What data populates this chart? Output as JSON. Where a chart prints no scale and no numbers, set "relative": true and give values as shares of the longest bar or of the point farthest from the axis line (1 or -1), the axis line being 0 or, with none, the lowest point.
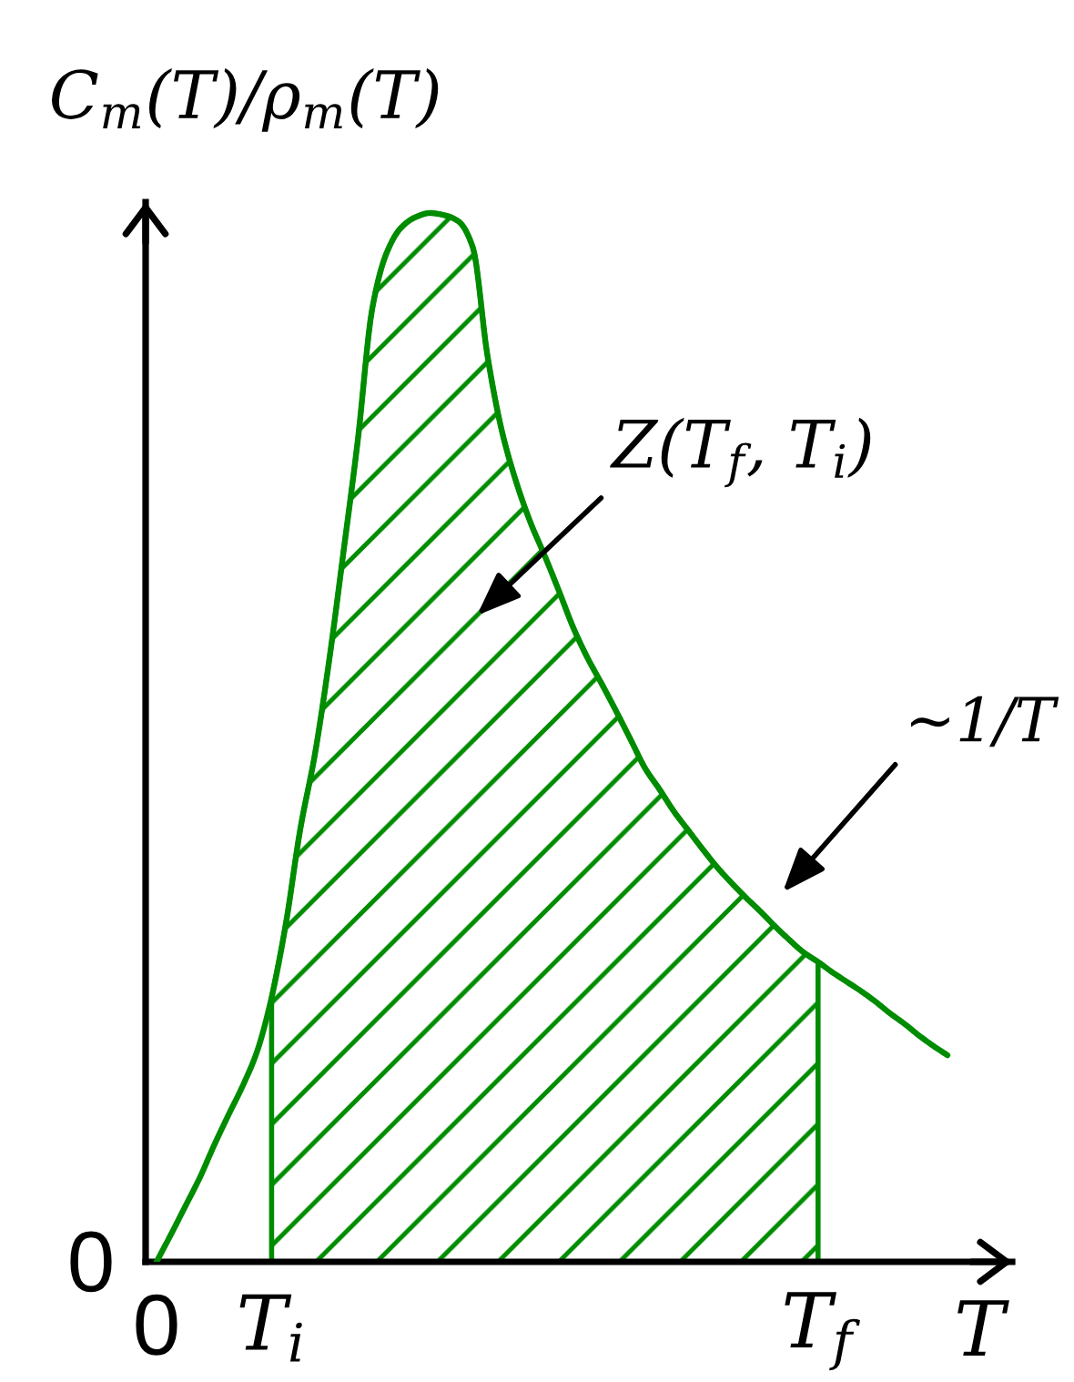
{
  "chart_data": {
    "type": "line",
    "relative": true,
    "xlabel": "T",
    "ylabel": "C$_{m}$(T)/ρ$_{m}$(T)",
    "categories": [
      "0",
      null,
      null,
      null,
      null,
      null,
      null,
      null,
      "T$_{i}$",
      null,
      null,
      null,
      null,
      null,
      null,
      null,
      null,
      null,
      null,
      null,
      null,
      null,
      null,
      null,
      null,
      null,
      null,
      null,
      null,
      null,
      null,
      null,
      null,
      null,
      null,
      null,
      null,
      null,
      null,
      null,
      null,
      null,
      null,
      null,
      null,
      null,
      "T$_{f}$",
      null,
      null,
      null,
      null,
      null,
      null,
      null,
      null,
      null
    ],
    "series": [
      {
        "type": "area",
        "color": "#008c00",
        "values": [
          null,
          null,
          null,
          null,
          null,
          null,
          null,
          null,
          0.252,
          0.323,
          0.413,
          0.483,
          0.573,
          0.677,
          0.784,
          0.909,
          0.962,
          0.986,
          0.996,
          1.0,
          0.998,
          0.992,
          0.967,
          0.865,
          0.793,
          0.744,
          0.705,
          0.673,
          0.639,
          0.604,
          0.575,
          0.55,
          0.524,
          0.497,
          0.47,
          0.45,
          0.429,
          0.411,
          0.393,
          0.376,
          0.361,
          0.347,
          0.334,
          0.32,
          0.307,
          0.295,
          0.286,
          null,
          null,
          null,
          null,
          null,
          null,
          null,
          null,
          null
        ]
      },
      {
        "color": "#008c00",
        "values": [
          0.0,
          0.026,
          0.053,
          0.08,
          0.111,
          0.14,
          0.168,
          0.201,
          0.252,
          0.323,
          0.413,
          0.483,
          0.573,
          0.677,
          0.784,
          0.909,
          0.962,
          0.986,
          0.996,
          1.0,
          0.998,
          0.992,
          0.967,
          0.865,
          0.793,
          0.744,
          0.705,
          0.673,
          0.639,
          0.604,
          0.575,
          0.55,
          0.524,
          0.497,
          0.47,
          0.45,
          0.429,
          0.411,
          0.393,
          0.376,
          0.361,
          0.347,
          0.334,
          0.32,
          0.307,
          0.295,
          0.286,
          0.276,
          0.267,
          0.258,
          0.248,
          0.237,
          0.227,
          0.216,
          0.206,
          0.197
        ]
      }
    ],
    "annotations": [
      "0",
      "Z(T$_{f}$, T$_{i}$)",
      "~1/T"
    ]
  }
}
